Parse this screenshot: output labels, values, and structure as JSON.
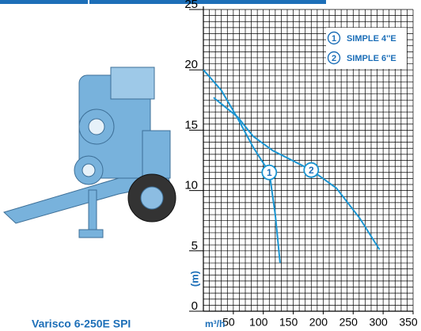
{
  "chart_data": {
    "type": "line",
    "caption": "Varisco 6-250E SPI",
    "x_label": "m³/h",
    "y_label": "(m)",
    "xlim": [
      0,
      350
    ],
    "ylim": [
      0,
      25
    ],
    "xticks": [
      50,
      100,
      150,
      200,
      250,
      300,
      350
    ],
    "yticks": [
      0,
      5,
      10,
      15,
      20,
      25
    ],
    "grid": true,
    "minor_grid": {
      "x": 10,
      "y": 0.5
    },
    "legend": "upper right",
    "series": [
      {
        "name": "SIMPLE 4''E",
        "label": "1",
        "color": "#1a95d2",
        "x": [
          0,
          30,
          57,
          83,
          110,
          120,
          128
        ],
        "values": [
          20,
          18.3,
          16,
          13.6,
          11.5,
          8,
          4
        ]
      },
      {
        "name": "SIMPLE 6''E",
        "label": "2",
        "color": "#1a95d2",
        "x": [
          17,
          57,
          83,
          116,
          180,
          222,
          261,
          294
        ],
        "values": [
          17.7,
          16.1,
          14.5,
          13.3,
          11.7,
          10.2,
          7.7,
          5.1
        ]
      }
    ]
  }
}
